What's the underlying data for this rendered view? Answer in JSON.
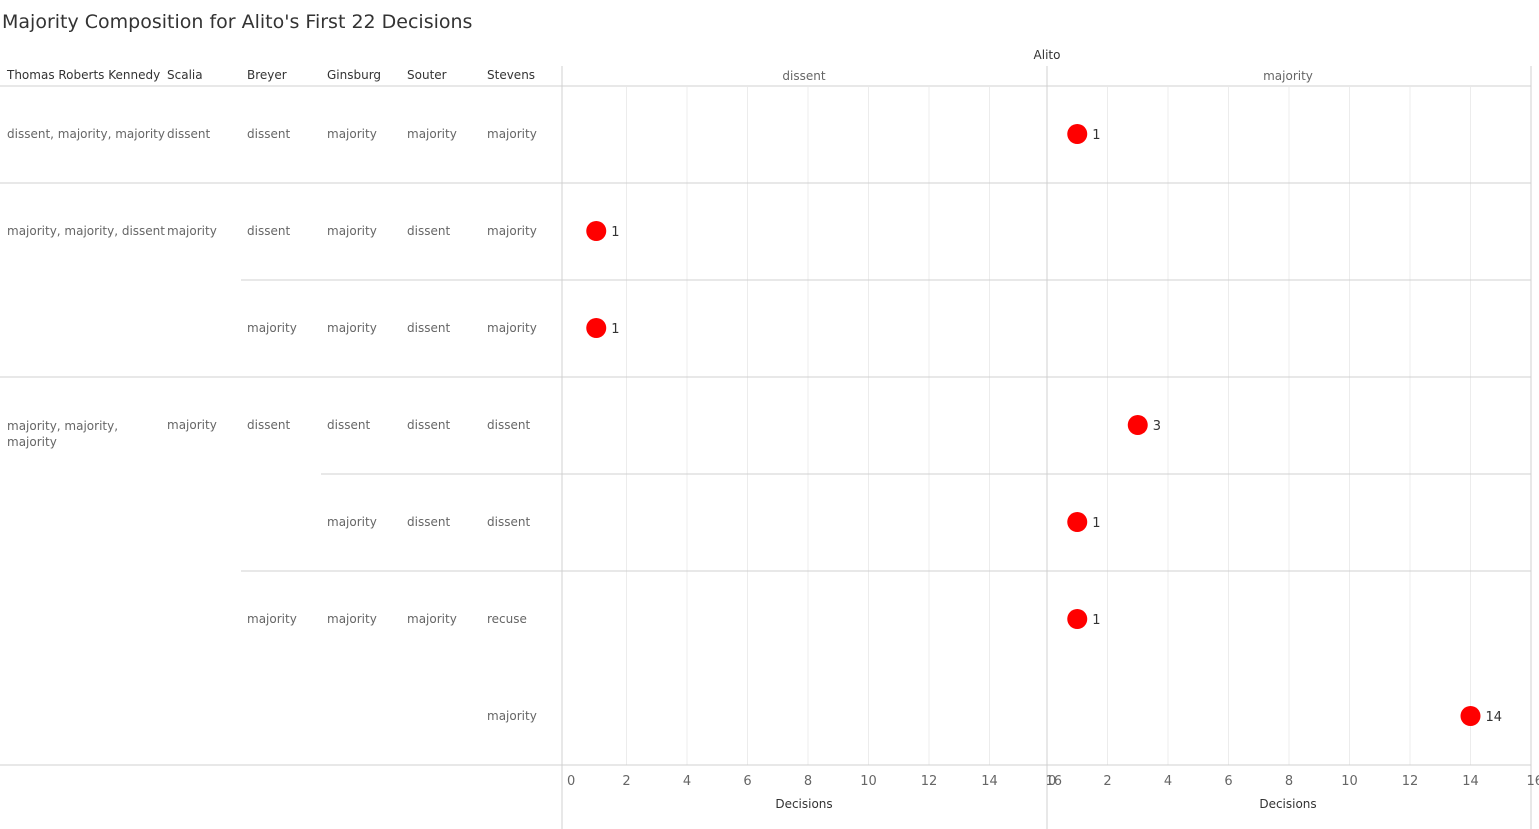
{
  "title": "Majority Composition for Alito's First 22 Decisions",
  "headers": [
    "Thomas Roberts Kennedy",
    "Scalia",
    "Breyer",
    "Ginsburg",
    "Souter",
    "Stevens"
  ],
  "column_group_label": "Alito",
  "panel_labels": [
    "dissent",
    "majority"
  ],
  "axis_title": "Decisions",
  "tick_values": [
    0,
    2,
    4,
    6,
    8,
    10,
    12,
    14,
    16
  ],
  "rows": [
    {
      "trk": "dissent, majority, majority",
      "scalia": "dissent",
      "breyer": "dissent",
      "ginsburg": "majority",
      "souter": "majority",
      "stevens": "majority"
    },
    {
      "trk": "majority, majority, dissent",
      "scalia": "majority",
      "breyer": "dissent",
      "ginsburg": "majority",
      "souter": "dissent",
      "stevens": "majority"
    },
    {
      "trk": "",
      "scalia": "",
      "breyer": "majority",
      "ginsburg": "majority",
      "souter": "dissent",
      "stevens": "majority"
    },
    {
      "trk": "majority, majority, majority",
      "scalia": "majority",
      "breyer": "dissent",
      "ginsburg": "dissent",
      "souter": "dissent",
      "stevens": "dissent"
    },
    {
      "trk": "",
      "scalia": "",
      "breyer": "",
      "ginsburg": "majority",
      "souter": "dissent",
      "stevens": "dissent"
    },
    {
      "trk": "",
      "scalia": "",
      "breyer": "majority",
      "ginsburg": "majority",
      "souter": "majority",
      "stevens": "recuse"
    },
    {
      "trk": "",
      "scalia": "",
      "breyer": "",
      "ginsburg": "",
      "souter": "",
      "stevens": "majority"
    }
  ],
  "chart_data": {
    "type": "scatter",
    "title": "Majority Composition for Alito's First 22 Decisions",
    "facet_label": "Alito",
    "panels": [
      "dissent",
      "majority"
    ],
    "xlabel": "Decisions",
    "xlim": [
      0,
      16
    ],
    "grid": true,
    "marker_color": "#ff0000",
    "points": [
      {
        "row": 0,
        "panel": "majority",
        "value": 1
      },
      {
        "row": 1,
        "panel": "dissent",
        "value": 1
      },
      {
        "row": 2,
        "panel": "dissent",
        "value": 1
      },
      {
        "row": 3,
        "panel": "majority",
        "value": 3
      },
      {
        "row": 4,
        "panel": "majority",
        "value": 1
      },
      {
        "row": 5,
        "panel": "majority",
        "value": 1
      },
      {
        "row": 6,
        "panel": "majority",
        "value": 14
      }
    ]
  }
}
